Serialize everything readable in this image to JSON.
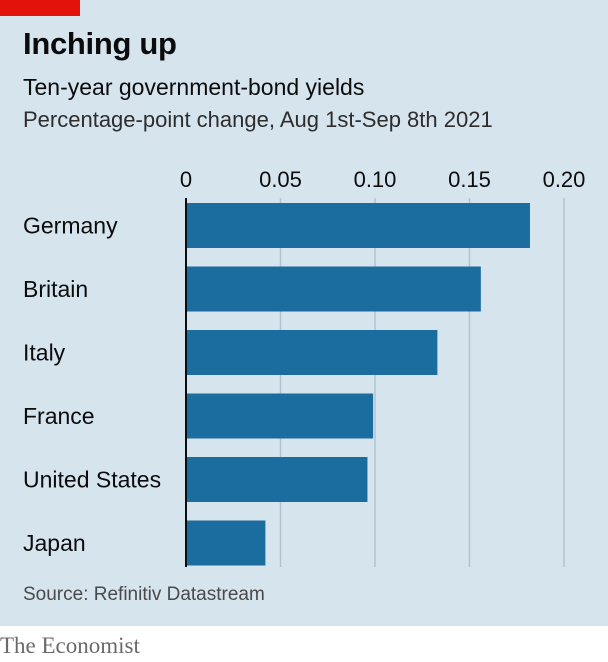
{
  "header": {
    "title": "Inching up",
    "subtitle": "Ten-year government-bond yields",
    "note": "Percentage-point change, Aug 1st-Sep 8th 2021"
  },
  "footer": {
    "source": "Source: Refinitiv Datastream",
    "brand": "The Economist"
  },
  "colors": {
    "bar": "#1a6d9e",
    "panel": "#d6e4ee",
    "grid": "#b3c3cd",
    "accent": "#e3120b"
  },
  "chart_data": {
    "type": "bar",
    "orientation": "horizontal",
    "categories": [
      "Germany",
      "Britain",
      "Italy",
      "France",
      "United States",
      "Japan"
    ],
    "values": [
      0.182,
      0.156,
      0.133,
      0.099,
      0.096,
      0.042
    ],
    "xlim": [
      0,
      0.2
    ],
    "xticks": [
      0,
      0.05,
      0.1,
      0.15,
      0.2
    ],
    "xtick_labels": [
      "0",
      "0.05",
      "0.10",
      "0.15",
      "0.20"
    ],
    "grid": true,
    "tick_labels_position": "top"
  }
}
